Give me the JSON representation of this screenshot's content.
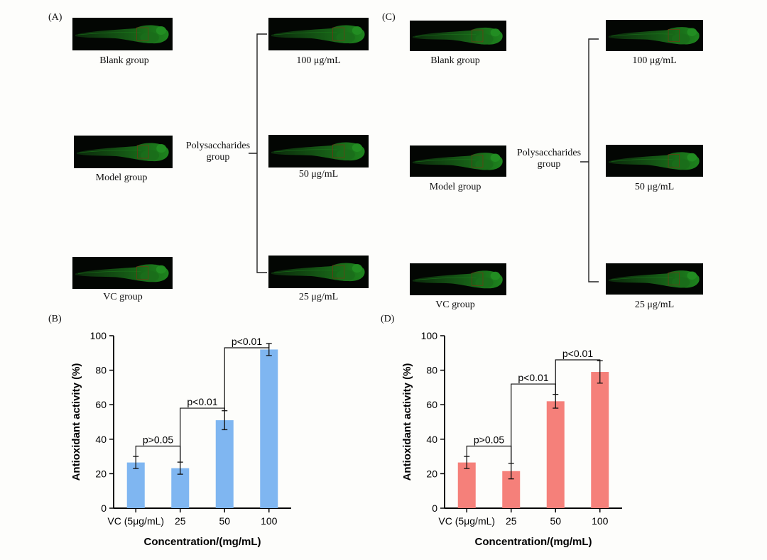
{
  "panels": {
    "A": {
      "label": "(A)",
      "left": [
        "Blank group",
        "Model group",
        "VC group"
      ],
      "poly": "Polysaccharides group",
      "right": [
        "100 μg/mL",
        "50 μg/mL",
        "25 μg/mL"
      ]
    },
    "C": {
      "label": "(C)",
      "left": [
        "Blank group",
        "Model group",
        "VC group"
      ],
      "poly": "Polysaccharides group",
      "right": [
        "100 μg/mL",
        "50 μg/mL",
        "25 μg/mL"
      ]
    }
  },
  "chart_data": [
    {
      "panel": "(B)",
      "type": "bar",
      "categories": [
        "VC (5μg/mL)",
        "25",
        "50",
        "100"
      ],
      "values": [
        26.5,
        23.2,
        51,
        92
      ],
      "errors": [
        3.5,
        3.5,
        5.5,
        3.5
      ],
      "xlabel": "Concentration/(mg/mL)",
      "ylabel": "Antioxidant activity (%)",
      "ylim": [
        0,
        100
      ],
      "yticks": [
        0,
        20,
        40,
        60,
        80,
        100
      ],
      "color": "#7fb6f1",
      "annotations": [
        {
          "from": 0,
          "to": 1,
          "text": "p>0.05",
          "level": 36
        },
        {
          "from": 1,
          "to": 2,
          "text": "p<0.01",
          "level": 58
        },
        {
          "from": 2,
          "to": 3,
          "text": "p<0.01",
          "level": 93
        }
      ]
    },
    {
      "panel": "(D)",
      "type": "bar",
      "categories": [
        "VC (5μg/mL)",
        "25",
        "50",
        "100"
      ],
      "values": [
        26.5,
        21.5,
        62,
        79
      ],
      "errors": [
        3.5,
        4.5,
        4.0,
        6.5
      ],
      "xlabel": "Concentration/(mg/mL)",
      "ylabel": "Antioxidant activity (%)",
      "ylim": [
        0,
        100
      ],
      "yticks": [
        0,
        20,
        40,
        60,
        80,
        100
      ],
      "color": "#f5807a",
      "annotations": [
        {
          "from": 0,
          "to": 1,
          "text": "p>0.05",
          "level": 36
        },
        {
          "from": 1,
          "to": 2,
          "text": "p<0.01",
          "level": 72
        },
        {
          "from": 2,
          "to": 3,
          "text": "p<0.01",
          "level": 86
        }
      ]
    }
  ]
}
